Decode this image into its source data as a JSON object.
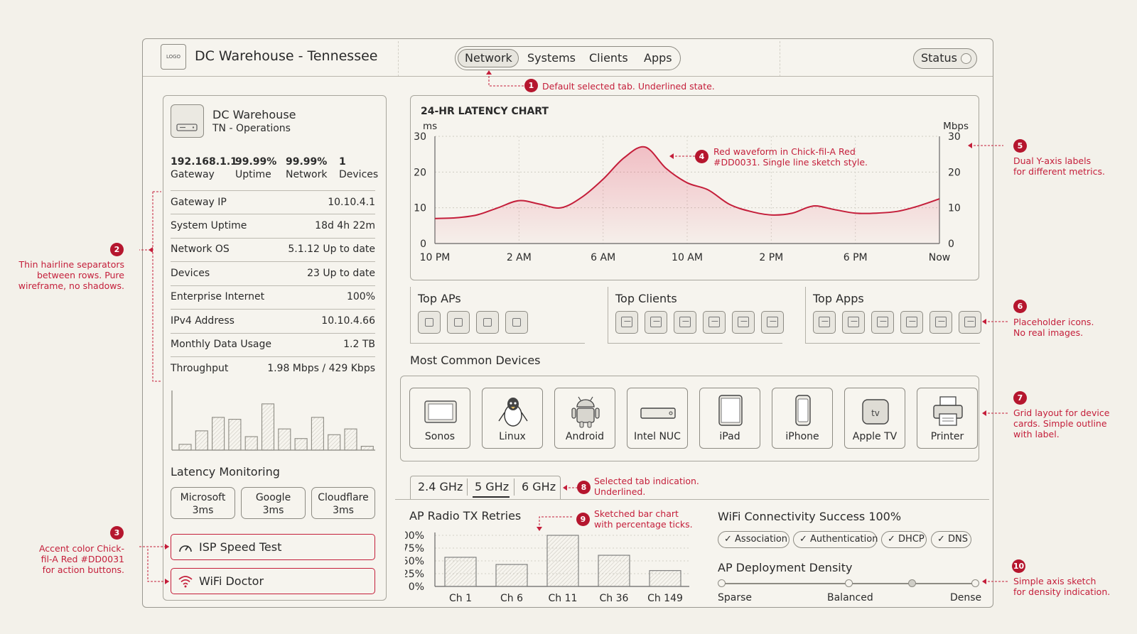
{
  "app": {
    "logo": "LOGO",
    "title": "DC Warehouse - Tennessee"
  },
  "nav": {
    "tabs": [
      "Network",
      "Systems",
      "Clients",
      "Apps"
    ],
    "active": "Network",
    "status_label": "Status"
  },
  "site": {
    "name": "DC Warehouse",
    "subtitle": "TN - Operations",
    "stats": [
      {
        "value": "192.168.1.1",
        "label": "Gateway"
      },
      {
        "value": "99.99%",
        "label": "Uptime"
      },
      {
        "value": "99.99%",
        "label": "Network"
      },
      {
        "value": "1",
        "label": "Devices"
      }
    ],
    "rows": [
      {
        "label": "Gateway IP",
        "value": "10.10.4.1"
      },
      {
        "label": "System Uptime",
        "value": "18d 4h 22m"
      },
      {
        "label": "Network OS",
        "value": "5.1.12 Up to date"
      },
      {
        "label": "Devices",
        "value": "23 Up to date"
      },
      {
        "label": "Enterprise Internet",
        "value": "100%"
      },
      {
        "label": "IPv4 Address",
        "value": "10.10.4.66"
      },
      {
        "label": "Monthly Data Usage",
        "value": "1.2 TB"
      },
      {
        "label": "Throughput",
        "value": "1.98 Mbps / 429 Kbps"
      }
    ]
  },
  "latency": {
    "title": "Latency Monitoring",
    "targets": [
      {
        "name": "Microsoft",
        "value": "3ms"
      },
      {
        "name": "Google",
        "value": "3ms"
      },
      {
        "name": "Cloudflare",
        "value": "3ms"
      }
    ]
  },
  "actions": {
    "speed_test": "ISP Speed Test",
    "wifi_doctor": "WiFi Doctor"
  },
  "top_sections": {
    "aps": "Top APs",
    "clients": "Top Clients",
    "apps": "Top Apps"
  },
  "devices": {
    "title": "Most Common Devices",
    "items": [
      "Sonos",
      "Linux",
      "Android",
      "Intel NUC",
      "iPad",
      "iPhone",
      "Apple TV",
      "Printer"
    ]
  },
  "wifi_tabs": {
    "items": [
      "2.4 GHz",
      "5 GHz",
      "6 GHz"
    ],
    "active": "5 GHz"
  },
  "connectivity": {
    "title": "WiFi Connectivity Success 100%",
    "checks": [
      "Association",
      "Authentication",
      "DHCP",
      "DNS"
    ]
  },
  "density": {
    "title": "AP Deployment Density",
    "labels": [
      "Sparse",
      "Balanced",
      "Dense"
    ]
  },
  "annotations": [
    {
      "n": "1",
      "text": "Default selected tab. Underlined state."
    },
    {
      "n": "2",
      "text": [
        "Thin hairline separators",
        "between rows. Pure",
        "wireframe, no shadows."
      ]
    },
    {
      "n": "3",
      "text": [
        "Accent color Chick-",
        "fil-A Red #DD0031",
        "for action buttons."
      ]
    },
    {
      "n": "4",
      "text": [
        "Red waveform in Chick-fil-A Red",
        "#DD0031. Single line sketch style."
      ]
    },
    {
      "n": "5",
      "text": [
        "Dual Y-axis labels",
        "for different metrics."
      ]
    },
    {
      "n": "6",
      "text": [
        "Placeholder icons.",
        "No real images."
      ]
    },
    {
      "n": "7",
      "text": [
        "Grid layout for device",
        "cards. Simple outline",
        "with label."
      ]
    },
    {
      "n": "8",
      "text": [
        "Selected tab indication.",
        "Underlined."
      ]
    },
    {
      "n": "9",
      "text": [
        "Sketched bar chart",
        "with percentage ticks."
      ]
    },
    {
      "n": "10",
      "text": [
        "Simple axis sketch",
        "for density indication."
      ]
    }
  ],
  "colors": {
    "accent": "#DD0031",
    "ink": "#2b2b2b",
    "paper": "#f3f1ea"
  },
  "chart_data": [
    {
      "type": "area",
      "title": "24-HR LATENCY CHART",
      "ylabel": "ms",
      "y2label": "Mbps",
      "ylim": [
        0,
        30
      ],
      "y2lim": [
        0,
        30
      ],
      "yticks": [
        "30",
        "20",
        "10",
        "0"
      ],
      "y2ticks": [
        "30",
        "20",
        "10",
        "0"
      ],
      "xtick_labels": [
        "10 PM",
        "2 AM",
        "6 AM",
        "10 AM",
        "2 PM",
        "6 PM",
        "Now"
      ],
      "x": [
        0,
        1,
        2,
        3,
        4,
        5,
        6,
        7,
        8,
        9,
        10,
        11,
        12,
        13,
        14,
        15,
        16,
        17,
        18,
        19,
        20,
        21,
        22,
        23,
        24
      ],
      "series": [
        {
          "values": [
            7,
            7.2,
            8,
            10,
            12,
            11,
            10,
            13,
            18,
            24,
            27,
            21,
            17,
            15,
            11,
            9,
            8,
            8.5,
            10.5,
            9.5,
            8.5,
            8.5,
            9,
            10.5,
            12.5
          ]
        }
      ],
      "grid": true,
      "color": "#c41e3a"
    },
    {
      "type": "bar",
      "title": "",
      "categories": [
        "1",
        "2",
        "3",
        "4",
        "5",
        "6",
        "7",
        "8",
        "9",
        "10",
        "11",
        "12"
      ],
      "values": [
        1.5,
        5,
        8.5,
        8,
        3.5,
        12,
        5.5,
        3,
        8.5,
        4,
        5.5,
        1
      ],
      "ylim": [
        0,
        14
      ],
      "grid": false
    },
    {
      "type": "bar",
      "title": "AP Radio TX Retries",
      "categories": [
        "Ch 1",
        "Ch 6",
        "Ch 11",
        "Ch 36",
        "Ch 149"
      ],
      "values": [
        57,
        43,
        100,
        61,
        31
      ],
      "ylim": [
        0,
        100
      ],
      "ytick_labels": [
        "100%",
        "75%",
        "50%",
        "25%",
        "0%"
      ],
      "grid": true
    }
  ]
}
